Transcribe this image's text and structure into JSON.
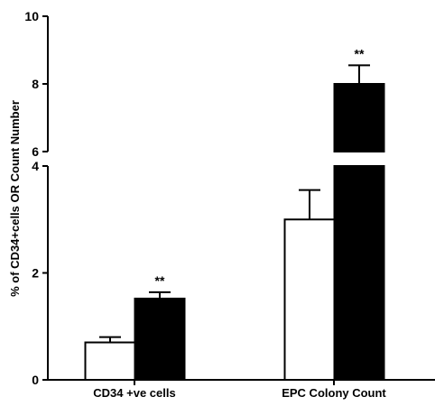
{
  "chart_data": {
    "type": "bar",
    "ylabel": "% of CD34+cells OR Count Number",
    "xlabel": "",
    "categories": [
      "CD34 +ve cells",
      "EPC Colony Count"
    ],
    "series": [
      {
        "fill": "#ffffff",
        "values": [
          0.7,
          3.0
        ],
        "errors": [
          0.1,
          0.55
        ]
      },
      {
        "fill": "#000000",
        "values": [
          1.52,
          8.0
        ],
        "errors": [
          0.12,
          0.55
        ]
      }
    ],
    "annotations": [
      {
        "category": "CD34 +ve cells",
        "series_index": 1,
        "text": "**"
      },
      {
        "category": "EPC Colony Count",
        "series_index": 1,
        "text": "**"
      }
    ],
    "y_axis": {
      "broken": true,
      "lower_segment": {
        "range": [
          0,
          4
        ],
        "ticks": [
          "0",
          "2",
          "4"
        ]
      },
      "upper_segment": {
        "range": [
          6,
          10
        ],
        "ticks": [
          "6",
          "8",
          "10"
        ]
      }
    },
    "grid": false,
    "legend": "none"
  }
}
